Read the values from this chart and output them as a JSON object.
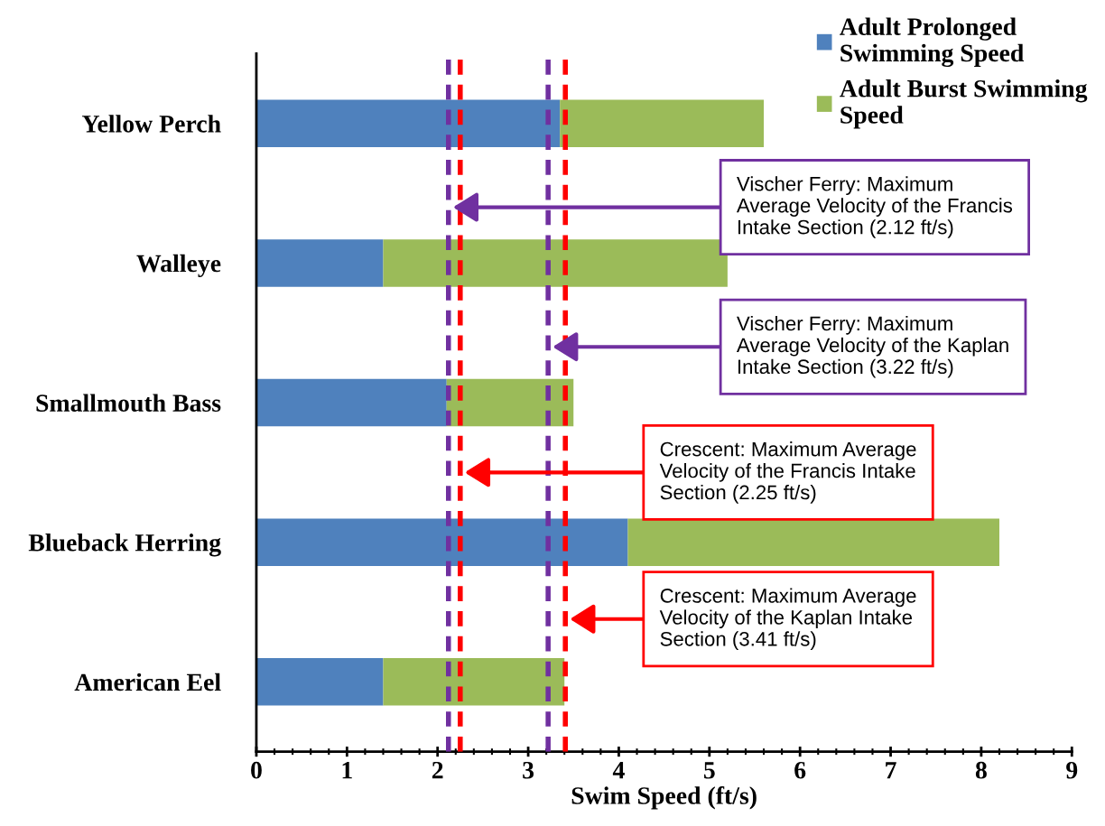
{
  "chart_data": {
    "type": "bar",
    "orientation": "horizontal",
    "stacked": true,
    "categories": [
      "Yellow Perch",
      "Walleye",
      "Smallmouth Bass",
      "Blueback Herring",
      "American Eel"
    ],
    "series": [
      {
        "name": "Adult Prolonged Swimming Speed",
        "color": "#4f81bd",
        "values": [
          3.35,
          1.4,
          2.1,
          4.1,
          1.4
        ]
      },
      {
        "name": "Adult Burst Swimming Speed",
        "color": "#9bbb59",
        "values": [
          2.25,
          3.8,
          1.4,
          4.1,
          2.0
        ]
      }
    ],
    "xlabel": "Swim Speed (ft/s)",
    "xlim": [
      0,
      9
    ],
    "xticks": [
      0,
      1,
      2,
      3,
      4,
      5,
      6,
      7,
      8,
      9
    ],
    "ref_lines": [
      {
        "axis": "x",
        "value": 2.12,
        "color": "#7030a0",
        "line_style": "dashed"
      },
      {
        "axis": "x",
        "value": 3.22,
        "color": "#7030a0",
        "line_style": "dashed"
      },
      {
        "axis": "x",
        "value": 2.25,
        "color": "#ff0000",
        "line_style": "dashed"
      },
      {
        "axis": "x",
        "value": 3.41,
        "color": "#ff0000",
        "line_style": "dashed"
      }
    ],
    "annotations": [
      "Vischer Ferry: Maximum\nAverage Velocity of the Francis\nIntake Section (2.12 ft/s)",
      "Vischer Ferry: Maximum\nAverage Velocity of the Kaplan\nIntake Section (3.22 ft/s)",
      "Crescent: Maximum Average\nVelocity of the Francis Intake\nSection (2.25 ft/s)",
      "Crescent: Maximum Average\nVelocity of the Kaplan Intake\nSection (3.41 ft/s)"
    ],
    "grid": false,
    "legend": "top right"
  }
}
